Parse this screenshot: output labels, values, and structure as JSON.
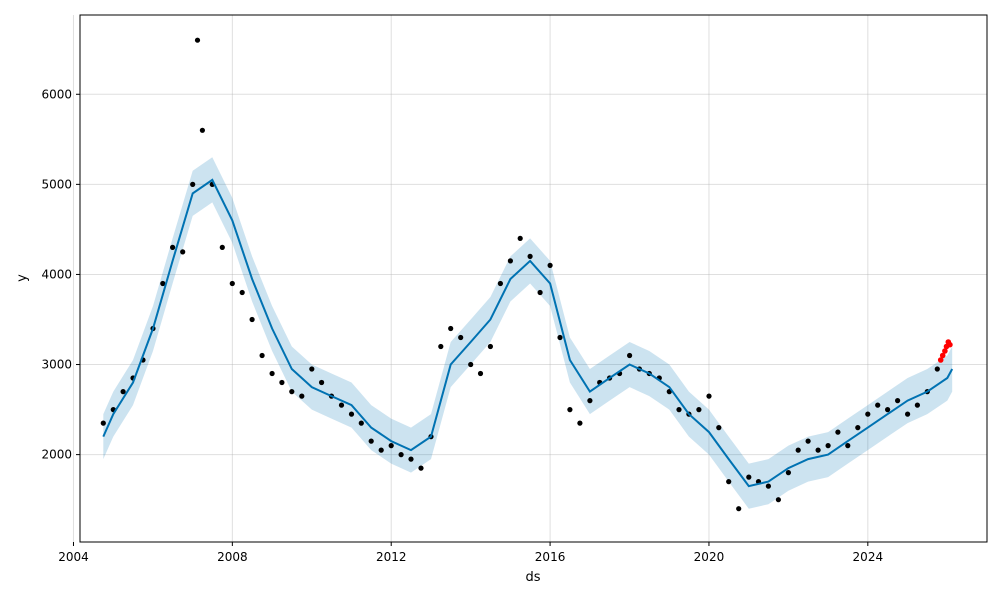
{
  "chart_data": {
    "type": "line",
    "title": "",
    "xlabel": "ds",
    "ylabel": "y",
    "xlim": [
      "2004-03-01",
      "2027-01-01"
    ],
    "ylim": [
      1030,
      6880
    ],
    "x_ticks": [
      "2004",
      "2008",
      "2012",
      "2016",
      "2020",
      "2024"
    ],
    "y_ticks": [
      2000,
      3000,
      4000,
      5000,
      6000
    ],
    "grid": true,
    "legend": "none",
    "colors": {
      "observed": "#000000",
      "forecast_points": "#ff0000",
      "trend_line": "#0072B2",
      "uncertainty_band": "#0072B2"
    },
    "series": [
      {
        "role": "forecast",
        "x": [
          "2004-10-01",
          "2005-01-01",
          "2005-07-01",
          "2006-01-01",
          "2006-07-01",
          "2007-01-01",
          "2007-07-01",
          "2008-01-01",
          "2008-07-01",
          "2009-01-01",
          "2009-07-01",
          "2010-01-01",
          "2010-07-01",
          "2011-01-01",
          "2011-07-01",
          "2012-01-01",
          "2012-07-01",
          "2013-01-01",
          "2013-07-01",
          "2014-01-01",
          "2014-07-01",
          "2015-01-01",
          "2015-07-01",
          "2016-01-01",
          "2016-07-01",
          "2017-01-01",
          "2017-07-01",
          "2018-01-01",
          "2018-07-01",
          "2019-01-01",
          "2019-07-01",
          "2020-01-01",
          "2020-07-01",
          "2021-01-01",
          "2021-07-01",
          "2022-01-01",
          "2022-07-01",
          "2023-01-01",
          "2023-07-01",
          "2024-01-01",
          "2024-07-01",
          "2025-01-01",
          "2025-07-01",
          "2026-01-01",
          "2026-02-15"
        ],
        "yhat": [
          2200,
          2450,
          2800,
          3400,
          4150,
          4900,
          5050,
          4600,
          3950,
          3400,
          2950,
          2750,
          2650,
          2550,
          2300,
          2150,
          2050,
          2200,
          3000,
          3250,
          3500,
          3950,
          4150,
          3900,
          3050,
          2700,
          2850,
          3000,
          2900,
          2750,
          2450,
          2250,
          1950,
          1650,
          1700,
          1850,
          1950,
          2000,
          2150,
          2300,
          2450,
          2600,
          2700,
          2850,
          2950
        ],
        "yhat_lower": [
          1950,
          2200,
          2550,
          3150,
          3900,
          4650,
          4800,
          4350,
          3700,
          3150,
          2700,
          2500,
          2400,
          2300,
          2050,
          1900,
          1800,
          1950,
          2750,
          3000,
          3250,
          3700,
          3900,
          3650,
          2800,
          2450,
          2600,
          2750,
          2650,
          2500,
          2200,
          2000,
          1700,
          1400,
          1450,
          1600,
          1700,
          1750,
          1900,
          2050,
          2200,
          2350,
          2450,
          2600,
          2700
        ],
        "yhat_upper": [
          2450,
          2700,
          3050,
          3650,
          4400,
          5150,
          5300,
          4850,
          4200,
          3650,
          3200,
          3000,
          2900,
          2800,
          2550,
          2400,
          2300,
          2450,
          3250,
          3500,
          3750,
          4200,
          4400,
          4150,
          3300,
          2950,
          3100,
          3250,
          3150,
          3000,
          2700,
          2500,
          2200,
          1900,
          1950,
          2100,
          2200,
          2250,
          2400,
          2550,
          2700,
          2850,
          2950,
          3100,
          3200
        ]
      },
      {
        "role": "observed",
        "x": [
          "2004-10-01",
          "2005-01-01",
          "2005-04-01",
          "2005-07-01",
          "2005-10-01",
          "2006-01-01",
          "2006-04-01",
          "2006-07-01",
          "2006-10-01",
          "2007-01-01",
          "2007-02-15",
          "2007-04-01",
          "2007-07-01",
          "2007-10-01",
          "2008-01-01",
          "2008-04-01",
          "2008-07-01",
          "2008-10-01",
          "2009-01-01",
          "2009-04-01",
          "2009-07-01",
          "2009-10-01",
          "2010-01-01",
          "2010-04-01",
          "2010-07-01",
          "2010-10-01",
          "2011-01-01",
          "2011-04-01",
          "2011-07-01",
          "2011-10-01",
          "2012-01-01",
          "2012-04-01",
          "2012-07-01",
          "2012-10-01",
          "2013-01-01",
          "2013-04-01",
          "2013-07-01",
          "2013-10-01",
          "2014-01-01",
          "2014-04-01",
          "2014-07-01",
          "2014-10-01",
          "2015-01-01",
          "2015-04-01",
          "2015-07-01",
          "2015-10-01",
          "2016-01-01",
          "2016-04-01",
          "2016-07-01",
          "2016-10-01",
          "2017-01-01",
          "2017-04-01",
          "2017-07-01",
          "2017-10-01",
          "2018-01-01",
          "2018-04-01",
          "2018-07-01",
          "2018-10-01",
          "2019-01-01",
          "2019-04-01",
          "2019-07-01",
          "2019-10-01",
          "2020-01-01",
          "2020-04-01",
          "2020-07-01",
          "2020-10-01",
          "2021-01-01",
          "2021-04-01",
          "2021-07-01",
          "2021-10-01",
          "2022-01-01",
          "2022-04-01",
          "2022-07-01",
          "2022-10-01",
          "2023-01-01",
          "2023-04-01",
          "2023-07-01",
          "2023-10-01",
          "2024-01-01",
          "2024-04-01",
          "2024-07-01",
          "2024-10-01",
          "2025-01-01",
          "2025-04-01",
          "2025-07-01",
          "2025-10-01"
        ],
        "y": [
          2350,
          2500,
          2700,
          2850,
          3050,
          3400,
          3900,
          4300,
          4250,
          5000,
          6600,
          5600,
          5000,
          4300,
          3900,
          3800,
          3500,
          3100,
          2900,
          2800,
          2700,
          2650,
          2950,
          2800,
          2650,
          2550,
          2450,
          2350,
          2150,
          2050,
          2100,
          2000,
          1950,
          1850,
          2200,
          3200,
          3400,
          3300,
          3000,
          2900,
          3200,
          3900,
          4150,
          4400,
          4200,
          3800,
          4100,
          3300,
          2500,
          2350,
          2600,
          2800,
          2850,
          2900,
          3100,
          2950,
          2900,
          2850,
          2700,
          2500,
          2450,
          2500,
          2650,
          2300,
          1700,
          1400,
          1750,
          1700,
          1650,
          1500,
          1800,
          2050,
          2150,
          2050,
          2100,
          2250,
          2100,
          2300,
          2450,
          2550,
          2500,
          2600,
          2450,
          2550,
          2700,
          2950
        ]
      },
      {
        "role": "recent",
        "x": [
          "2025-11-01",
          "2025-11-20",
          "2025-12-10",
          "2025-12-25",
          "2026-01-10",
          "2026-01-25"
        ],
        "y": [
          3050,
          3100,
          3150,
          3200,
          3250,
          3220
        ]
      }
    ]
  }
}
